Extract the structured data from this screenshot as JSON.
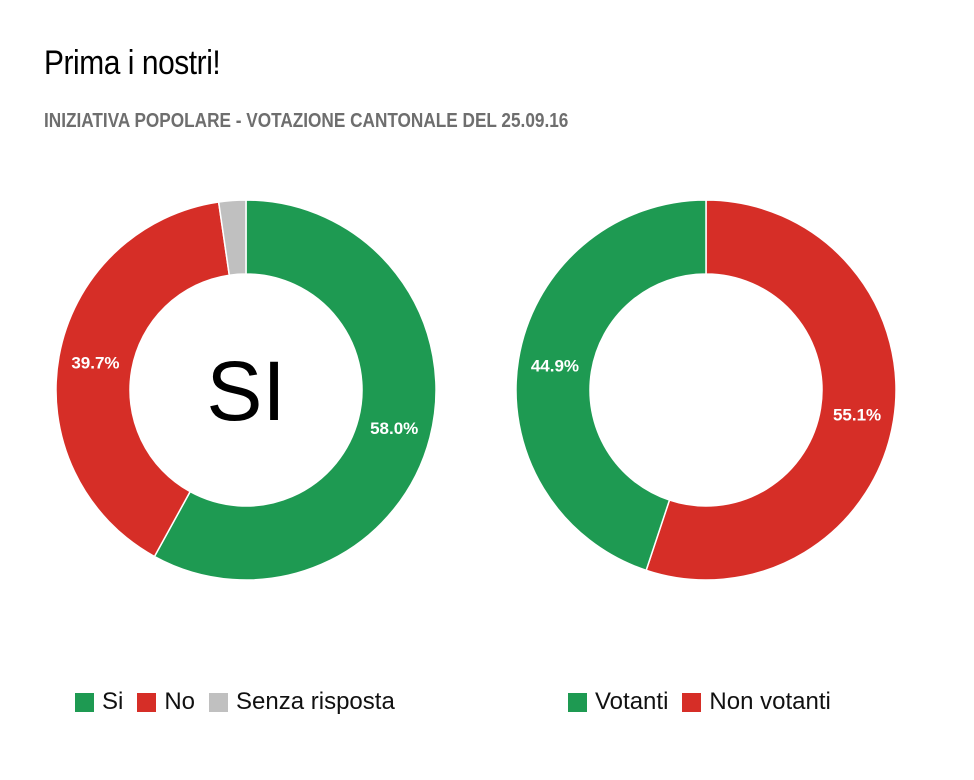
{
  "header": {
    "title": "Prima i nostri!",
    "subtitle": "INIZIATIVA POPOLARE - VOTAZIONE CANTONALE DEL 25.09.16"
  },
  "colors": {
    "green": "#1e9a52",
    "red": "#d62e27",
    "gray": "#c0c0c0"
  },
  "chart_data": [
    {
      "type": "pie",
      "donut": true,
      "center_label": "SI",
      "slices": [
        {
          "name": "Si",
          "value": 58.0,
          "label": "58.0%",
          "color": "#1e9a52"
        },
        {
          "name": "No",
          "value": 39.7,
          "label": "39.7%",
          "color": "#d62e27"
        },
        {
          "name": "Senza risposta",
          "value": 2.3,
          "label": "",
          "color": "#c0c0c0"
        }
      ],
      "legend": [
        "Si",
        "No",
        "Senza risposta"
      ]
    },
    {
      "type": "pie",
      "donut": true,
      "center_label": "",
      "slices": [
        {
          "name": "Non votanti",
          "value": 55.1,
          "label": "55.1%",
          "color": "#d62e27"
        },
        {
          "name": "Votanti",
          "value": 44.9,
          "label": "44.9%",
          "color": "#1e9a52"
        }
      ],
      "legend": [
        "Votanti",
        "Non votanti"
      ]
    }
  ]
}
